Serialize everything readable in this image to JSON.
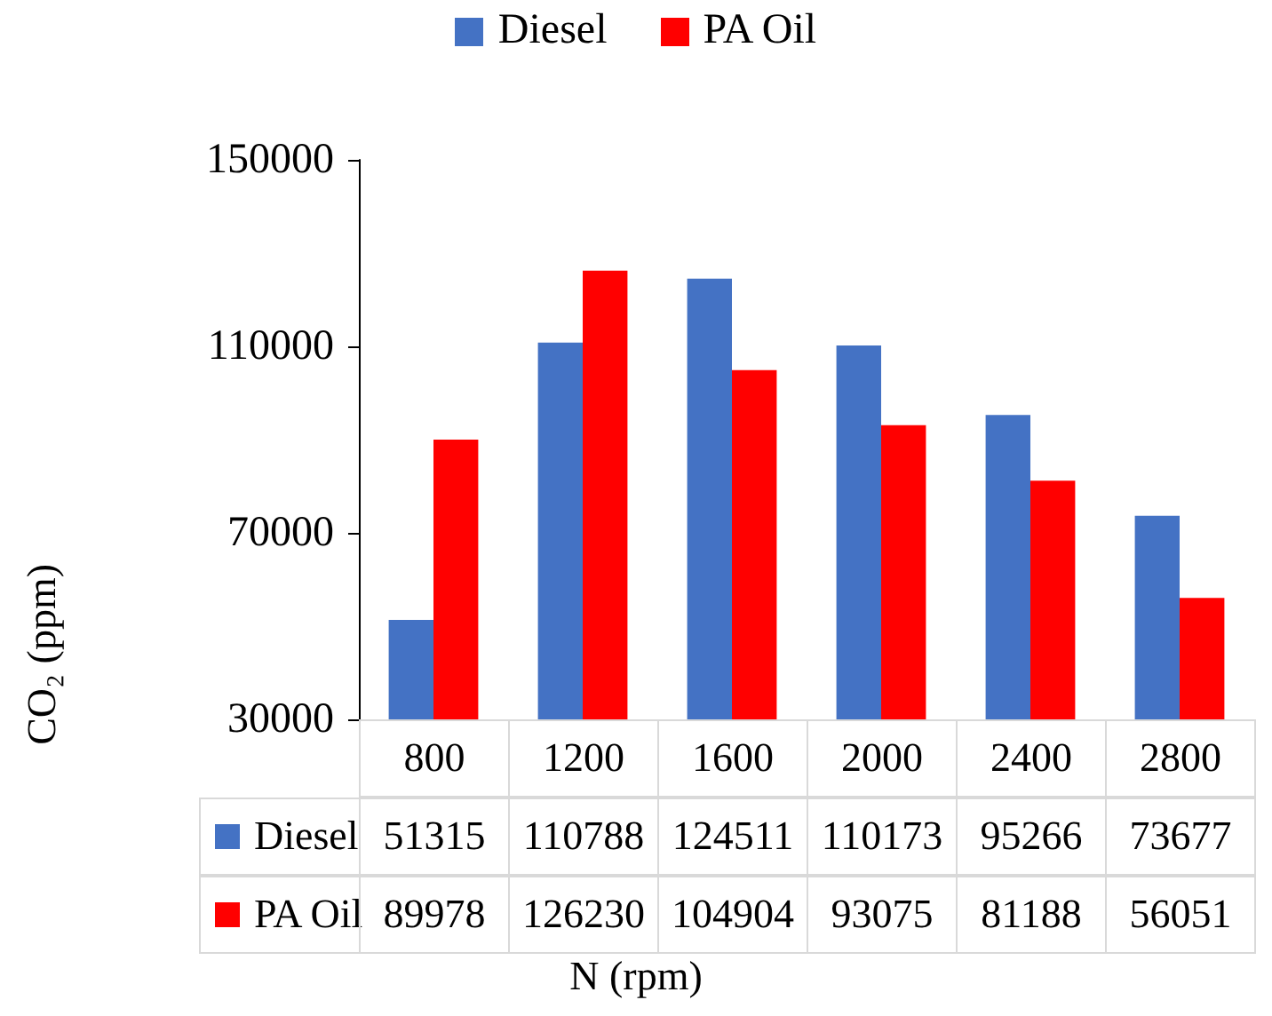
{
  "chart_data": {
    "type": "bar",
    "xlabel": "N (rpm)",
    "ylabel": "CO₂ (ppm)",
    "categories": [
      "800",
      "1200",
      "1600",
      "2000",
      "2400",
      "2800"
    ],
    "series": [
      {
        "name": "Diesel",
        "color": "#4472c4",
        "values": [
          51315,
          110788,
          124511,
          110173,
          95266,
          73677
        ]
      },
      {
        "name": "PA Oil",
        "color": "#ff0000",
        "values": [
          89978,
          126230,
          104904,
          93075,
          81188,
          56051
        ]
      }
    ],
    "ylim": [
      30000,
      150000
    ],
    "yticks": [
      30000,
      70000,
      110000,
      150000
    ],
    "grid": false,
    "legend": "top",
    "data_labels": true
  }
}
